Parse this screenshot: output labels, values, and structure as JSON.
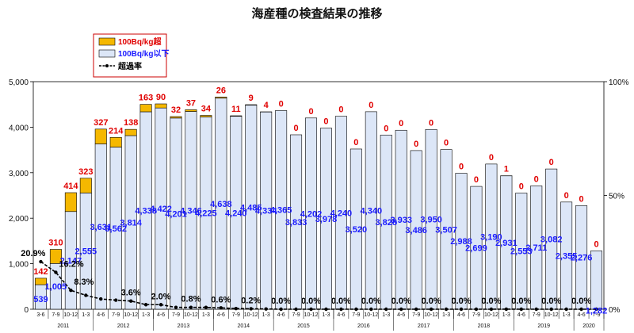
{
  "chart_data": {
    "type": "bar",
    "title": "海産種の検査結果の推移",
    "periods": [
      "3-6",
      "7-9",
      "10-12",
      "1-3",
      "4-6",
      "7-9",
      "10-12",
      "1-3",
      "4-6",
      "7-9",
      "10-12",
      "1-3",
      "4-6",
      "7-9",
      "10-12",
      "1-3",
      "4-6",
      "7-9",
      "10-12",
      "1-3",
      "4-6",
      "7-9",
      "10-12",
      "1-3",
      "4-6",
      "7-9",
      "10-12",
      "1-3",
      "4-6",
      "7-9",
      "10-12",
      "1-3",
      "4-6",
      "7-9",
      "10-12",
      "1-3",
      "4-6",
      "7-9"
    ],
    "years": [
      {
        "label": "2011",
        "start": 0,
        "end": 3
      },
      {
        "label": "2012",
        "start": 4,
        "end": 7
      },
      {
        "label": "2013",
        "start": 8,
        "end": 11
      },
      {
        "label": "2014",
        "start": 12,
        "end": 15
      },
      {
        "label": "2015",
        "start": 16,
        "end": 19
      },
      {
        "label": "2016",
        "start": 20,
        "end": 23
      },
      {
        "label": "2017",
        "start": 24,
        "end": 27
      },
      {
        "label": "2018",
        "start": 28,
        "end": 31
      },
      {
        "label": "2019",
        "start": 32,
        "end": 35
      },
      {
        "label": "2020",
        "start": 36,
        "end": 37
      }
    ],
    "series": [
      {
        "name": "100Bq/kg超",
        "color": "#f5b800",
        "values": [
          142,
          310,
          414,
          323,
          327,
          214,
          138,
          163,
          90,
          32,
          37,
          34,
          26,
          11,
          9,
          4,
          0,
          0,
          0,
          0,
          0,
          0,
          0,
          0,
          0,
          0,
          0,
          0,
          0,
          0,
          0,
          1,
          0,
          0,
          0,
          0,
          0,
          0
        ],
        "labels": [
          "142",
          "310",
          "414",
          "323",
          "327",
          "214",
          "138",
          "163",
          "90",
          "32",
          "37",
          "34",
          "26",
          "11",
          "9",
          "4",
          "0",
          "0",
          "0",
          "0",
          "0",
          "0",
          "0",
          "0",
          "0",
          "0",
          "0",
          "0",
          "0",
          "0",
          "0",
          "1",
          "0",
          "0",
          "0",
          "0",
          "0",
          "0"
        ]
      },
      {
        "name": "100Bq/kg以下",
        "color": "#dce6f7",
        "values": [
          539,
          1005,
          2147,
          2555,
          3631,
          3562,
          3814,
          4338,
          4422,
          4201,
          4346,
          4225,
          4638,
          4240,
          4485,
          4334,
          4365,
          3833,
          4202,
          3978,
          4240,
          3520,
          4340,
          3828,
          3933,
          3486,
          3950,
          3507,
          2988,
          2699,
          3190,
          2931,
          2553,
          2711,
          3082,
          2355,
          2276,
          1282
        ],
        "labels": [
          "539",
          "1,005",
          "2,147",
          "2,555",
          "3,631",
          "3,562",
          "3,814",
          "4,338",
          "4,422",
          "4,201",
          "4,346",
          "4,225",
          "4,638",
          "4,240",
          "4,485",
          "4,334",
          "4,365",
          "3,833",
          "4,202",
          "3,978",
          "4,240",
          "3,520",
          "4,340",
          "3,828",
          "3,933",
          "3,486",
          "3,950",
          "3,507",
          "2,988",
          "2,699",
          "3,190",
          "2,931",
          "2,553",
          "2,711",
          "3,082",
          "2,355",
          "2,276",
          "1,282"
        ]
      },
      {
        "name": "超過率",
        "color": "#000000",
        "values": [
          20.9,
          16.2,
          8.3,
          6.1,
          4.5,
          4.0,
          3.6,
          2.0,
          2.0,
          0.8,
          0.8,
          0.8,
          0.6,
          0.3,
          0.2,
          0.1,
          0,
          0,
          0,
          0,
          0,
          0,
          0,
          0,
          0,
          0,
          0,
          0,
          0,
          0,
          0,
          0.03,
          0,
          0,
          0,
          0,
          0,
          0
        ]
      }
    ],
    "rate_labels": [
      {
        "i": 0,
        "text": "20.9%"
      },
      {
        "i": 1,
        "text": "16.2%"
      },
      {
        "i": 2,
        "text": "8.3%"
      },
      {
        "i": 6,
        "text": "3.6%"
      },
      {
        "i": 8,
        "text": "2.0%"
      },
      {
        "i": 10,
        "text": "0.8%"
      },
      {
        "i": 12,
        "text": "0.6%"
      },
      {
        "i": 14,
        "text": "0.2%"
      },
      {
        "i": 16,
        "text": "0.0%"
      },
      {
        "i": 18,
        "text": "0.0%"
      },
      {
        "i": 20,
        "text": "0.0%"
      },
      {
        "i": 22,
        "text": "0.0%"
      },
      {
        "i": 24,
        "text": "0.0%"
      },
      {
        "i": 26,
        "text": "0.0%"
      },
      {
        "i": 28,
        "text": "0.0%"
      },
      {
        "i": 30,
        "text": "0.0%"
      },
      {
        "i": 32,
        "text": "0.0%"
      },
      {
        "i": 34,
        "text": "0.0%"
      },
      {
        "i": 36,
        "text": "0.0%"
      }
    ],
    "y_left": {
      "min": 0,
      "max": 5000,
      "ticks": [
        "0",
        "1,000",
        "2,000",
        "3,000",
        "4,000",
        "5,000"
      ]
    },
    "y_right": {
      "min": 0,
      "max": 100,
      "ticks": [
        "0%",
        "50%",
        "100%"
      ]
    },
    "legend_position": "top-left"
  }
}
